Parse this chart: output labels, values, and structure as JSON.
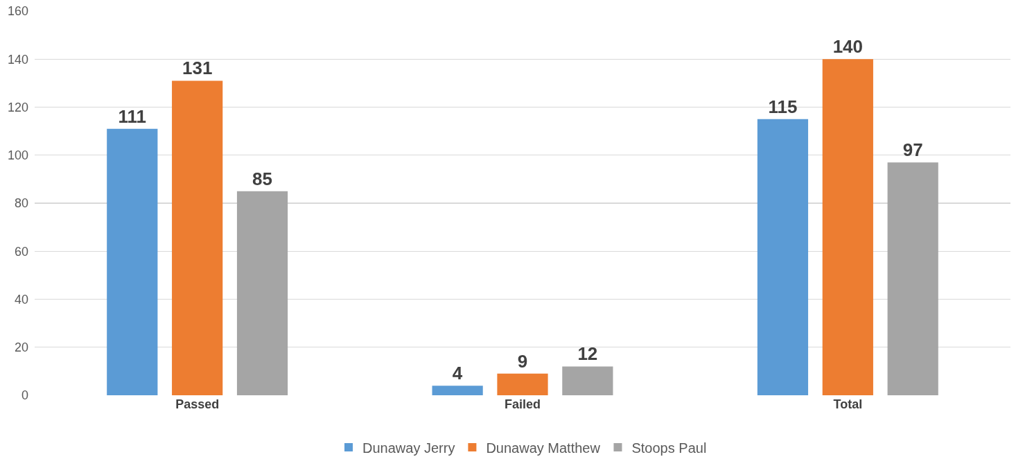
{
  "chart_data": {
    "type": "bar",
    "categories": [
      "Passed",
      "Failed",
      "Total"
    ],
    "series": [
      {
        "name": "Dunaway Jerry",
        "color": "#5b9bd5",
        "values": [
          111,
          4,
          115
        ]
      },
      {
        "name": "Dunaway Matthew",
        "color": "#ed7d31",
        "values": [
          131,
          9,
          140
        ]
      },
      {
        "name": "Stoops Paul",
        "color": "#a5a5a5",
        "values": [
          85,
          12,
          97
        ]
      }
    ],
    "ylim": [
      0,
      160
    ],
    "yticks": [
      0,
      20,
      40,
      60,
      80,
      100,
      120,
      140,
      160
    ],
    "grid": "y",
    "legend": "bottom",
    "data_labels": true
  }
}
